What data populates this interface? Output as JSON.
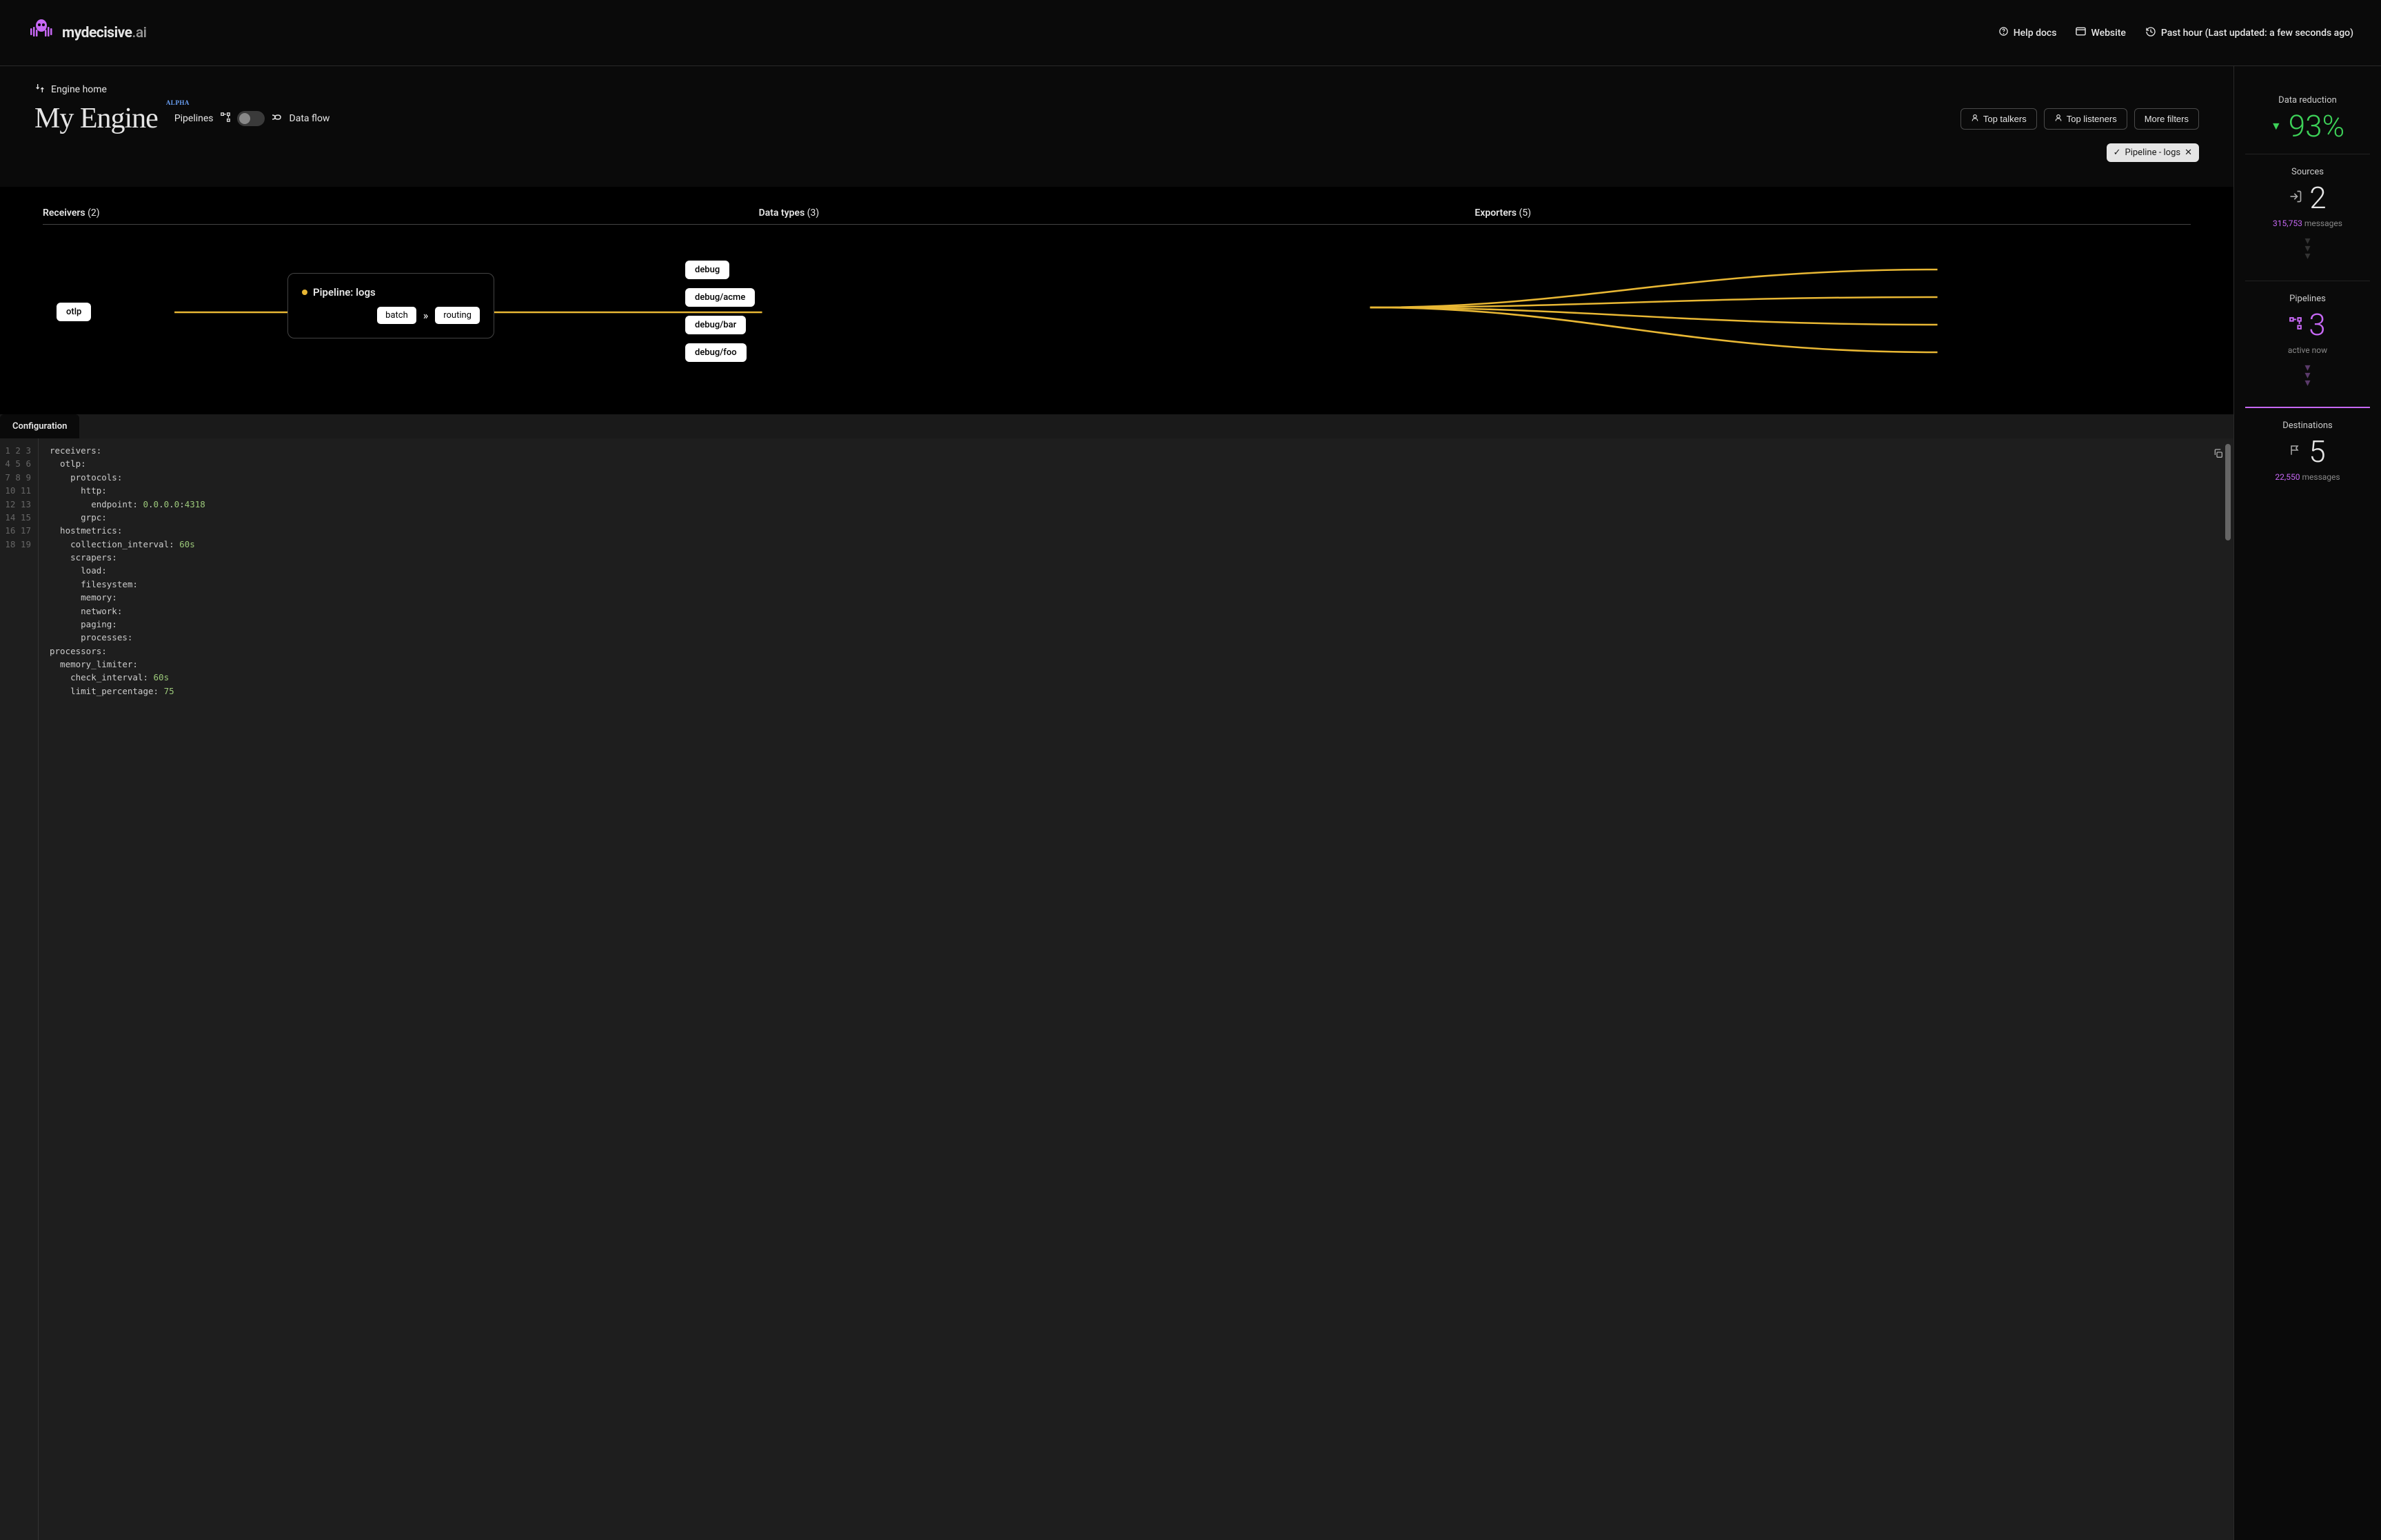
{
  "brand": {
    "name_part1": "mydecisive",
    "name_part2": ".ai"
  },
  "topbar": {
    "help_label": "Help docs",
    "website_label": "Website",
    "time_label": "Past hour (Last updated: a few seconds ago)"
  },
  "page": {
    "breadcrumb": "Engine home",
    "title": "My Engine",
    "alpha": "ALPHA",
    "mode_pipelines": "Pipelines",
    "mode_dataflow": "Data flow",
    "filters": {
      "top_talkers": "Top talkers",
      "top_listeners": "Top listeners",
      "more": "More filters"
    },
    "selected_chip": "Pipeline - logs"
  },
  "canvas": {
    "col_receivers": "Receivers",
    "col_receivers_cnt": "(2)",
    "col_datatypes": "Data types",
    "col_datatypes_cnt": "(3)",
    "col_exporters": "Exporters",
    "col_exporters_cnt": "(5)",
    "receiver": "otlp",
    "pipeline_name": "Pipeline: logs",
    "proc_batch": "batch",
    "proc_routing": "routing",
    "exporters": [
      "debug",
      "debug/acme",
      "debug/bar",
      "debug/foo"
    ],
    "wire_color": "#e8b734"
  },
  "config": {
    "tab": "Configuration",
    "lines": [
      "receivers:",
      "  otlp:",
      "    protocols:",
      "      http:",
      "        endpoint: 0.0.0.0:4318",
      "      grpc:",
      "  hostmetrics:",
      "    collection_interval: 60s",
      "    scrapers:",
      "      load:",
      "      filesystem:",
      "      memory:",
      "      network:",
      "      paging:",
      "      processes:",
      "processors:",
      "  memory_limiter:",
      "    check_interval: 60s",
      "    limit_percentage: 75"
    ]
  },
  "stats": {
    "reduction_label": "Data reduction",
    "reduction_val": "93%",
    "sources_label": "Sources",
    "sources_val": "2",
    "sources_msgs": "315,753",
    "pipelines_label": "Pipelines",
    "pipelines_val": "3",
    "pipelines_sub": "active now",
    "dest_label": "Destinations",
    "dest_val": "5",
    "dest_msgs": "22,550",
    "messages_word": "messages"
  }
}
